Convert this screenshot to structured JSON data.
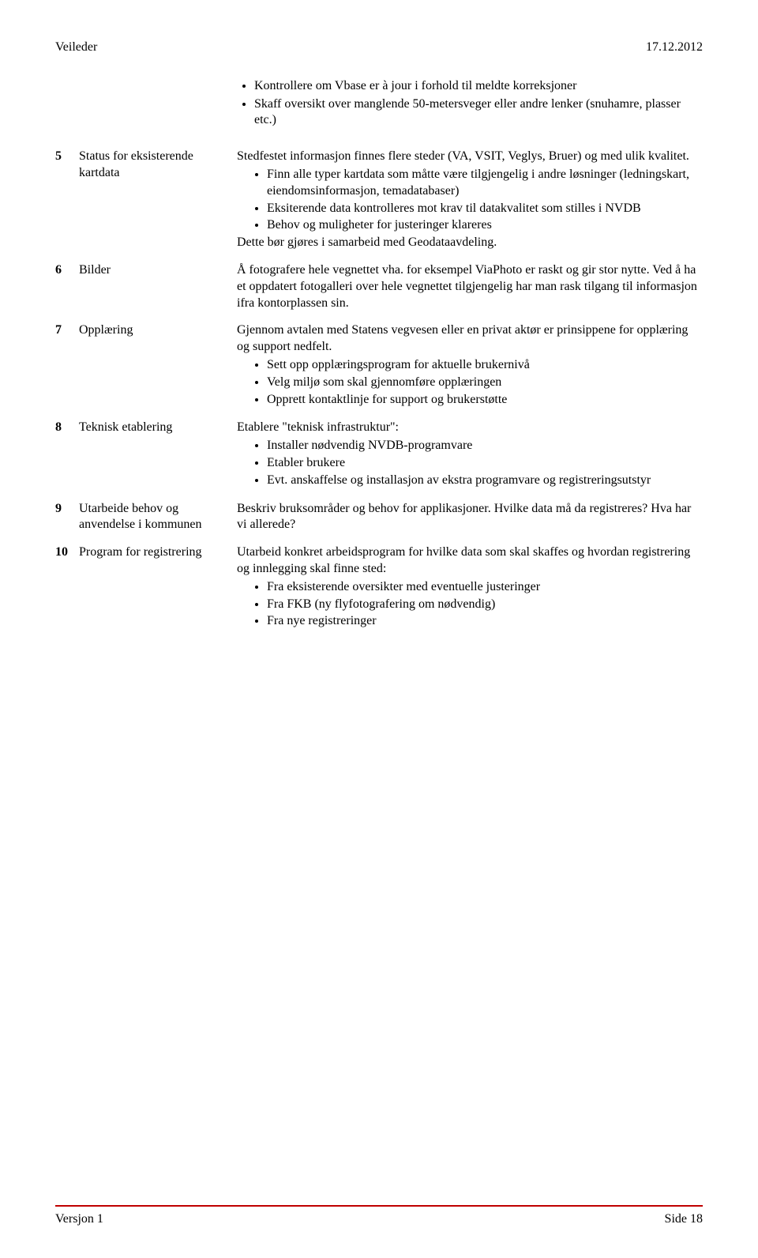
{
  "header": {
    "left": "Veileder",
    "right": "17.12.2012"
  },
  "intro": {
    "b1": "Kontrollere om Vbase er à jour i forhold til meldte korreksjoner",
    "b2": "Skaff oversikt over manglende 50-metersveger eller andre lenker (snuhamre, plasser etc.)"
  },
  "rows": {
    "r5": {
      "num": "5",
      "label": "Status for eksisterende kartdata",
      "p1": "Stedfestet informasjon finnes flere steder (VA, VSIT, Veglys, Bruer) og med ulik kvalitet.",
      "b1": "Finn alle typer kartdata som måtte være tilgjengelig i andre løsninger (ledningskart, eiendomsinformasjon, temadatabaser)",
      "b2": "Eksiterende data kontrolleres mot krav til datakvalitet som stilles i NVDB",
      "b3": "Behov og muligheter for justeringer klareres",
      "p2": "Dette bør gjøres i samarbeid med Geodataavdeling."
    },
    "r6": {
      "num": "6",
      "label": "Bilder",
      "p1": "Å fotografere hele vegnettet vha. for eksempel ViaPhoto er raskt og gir stor nytte. Ved å ha et oppdatert fotogalleri over hele vegnettet tilgjengelig har man rask tilgang til informasjon ifra kontorplassen sin."
    },
    "r7": {
      "num": "7",
      "label": "Opplæring",
      "p1": "Gjennom avtalen med Statens vegvesen eller en privat aktør er prinsippene for opplæring og support nedfelt.",
      "b1": "Sett opp opplæringsprogram for aktuelle brukernivå",
      "b2": "Velg miljø som skal gjennomføre opplæringen",
      "b3": "Opprett kontaktlinje for support og brukerstøtte"
    },
    "r8": {
      "num": "8",
      "label": "Teknisk etablering",
      "p1": "Etablere \"teknisk infrastruktur\":",
      "b1": "Installer nødvendig NVDB-programvare",
      "b2": "Etabler brukere",
      "b3": "Evt. anskaffelse og installasjon av ekstra programvare og registreringsutstyr"
    },
    "r9": {
      "num": "9",
      "label": "Utarbeide behov og anvendelse i kommunen",
      "p1": "Beskriv bruksområder og behov for applikasjoner. Hvilke data må da registreres? Hva har vi allerede?"
    },
    "r10": {
      "num": "10",
      "label": "Program for registrering",
      "p1": "Utarbeid konkret arbeidsprogram for hvilke data som skal skaffes og hvordan registrering og innlegging skal finne sted:",
      "b1": "Fra eksisterende oversikter med eventuelle justeringer",
      "b2": "Fra FKB (ny flyfotografering om nødvendig)",
      "b3": "Fra nye registreringer"
    }
  },
  "footer": {
    "left": "Versjon 1",
    "right": "Side 18",
    "line_color": "#c00000"
  }
}
